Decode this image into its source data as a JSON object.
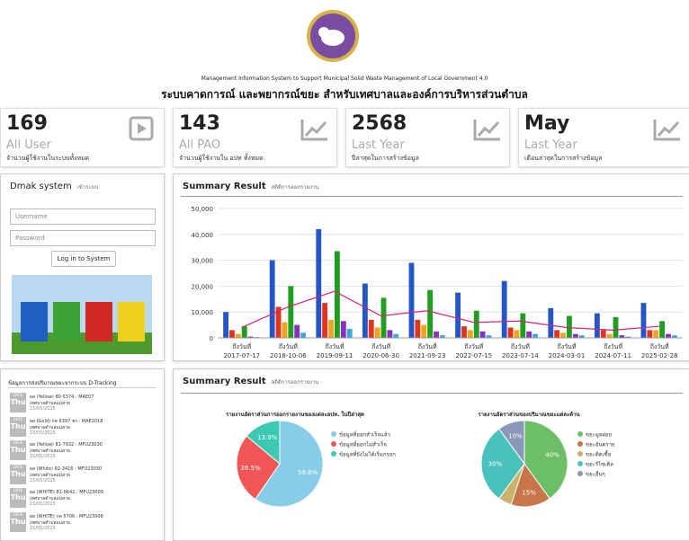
{
  "header": {
    "subtitle_en": "Management Information System to Support Municipal Solid Waste Management of Local Government 4.0",
    "title_th": "ระบบคาดการณ์ และพยากรณ์ขยะ สำหรับเทศบาลและองค์การบริหารส่วนตำบล"
  },
  "stats": [
    {
      "value": 169,
      "label": "All User",
      "desc": "จำนวนผู้ใช้งานในระบบทั้งหมด"
    },
    {
      "value": 143,
      "label": "All PAO",
      "desc": "จำนวนผู้ใช้งานใน อปท ทั้งหมด"
    },
    {
      "value": 2568,
      "label": "Last Year",
      "desc": "ปีล่าสุดในการสร้างข้อมูล"
    },
    {
      "value": "May",
      "label": "Last Year",
      "desc": "เดือนล่าสุดในการสร้างข้อมูล"
    }
  ],
  "login": {
    "title": "Dmak system",
    "subtitle": "เข้าระบบ",
    "username": "Username",
    "password": "Password",
    "button": "Log in to System"
  },
  "tracking": {
    "title": "ข้อมูลการส่งปริมาณขยะจากระบบ D-Tracking",
    "items": [
      {
        "badge": "DATE",
        "day": "Thu",
        "text": "ผส (Yellow) 80-5374 : MAE07",
        "org": "เทศบาลตำบลแม่สาย",
        "date": "15/05/2025"
      },
      {
        "badge": "DATE",
        "day": "Thu",
        "text": "ผส (Gold) กค 6397 ชร : MAE1018",
        "org": "เทศบาลตำบลแม่สาย",
        "date": "15/05/2025"
      },
      {
        "badge": "DATE",
        "day": "Thu",
        "text": "ผส (Yellow) 81-7932 : MFU23030",
        "org": "เทศบาลตำบลแม่สาย",
        "date": "15/05/2025"
      },
      {
        "badge": "DATE",
        "day": "Thu",
        "text": "ผส (White) 82-3416 : MFU23030",
        "org": "เทศบาลตำบลแม่สาย",
        "date": "15/05/2025"
      },
      {
        "badge": "DATE",
        "day": "Thu",
        "text": "ผส (WHITE) 81-0642 : MFU23009",
        "org": "เทศบาลตำบลแม่สาย",
        "date": "15/05/2025"
      },
      {
        "badge": "DATE",
        "day": "Thu",
        "text": "ผส (WHITE) กค 5706 : MFU23008",
        "org": "เทศบาลตำบลแม่สาย",
        "date": "15/05/2025"
      }
    ]
  },
  "panels": [
    {
      "title": "Summary Result",
      "subtitle": "สถิติการออกรายงาน"
    },
    {
      "title": "Summary Result",
      "subtitle": "สถิติการออกรายงาน"
    }
  ],
  "chart_data": [
    {
      "type": "bar",
      "category_prefix": "ถึงวันที่",
      "categories": [
        "2017-07-17",
        "2018-10-06",
        "2019-09-11",
        "2020-06-30",
        "2021-09-23",
        "2022-07-15",
        "2023-07-14",
        "2024-03-01",
        "2024-07-11",
        "2025-02-28"
      ],
      "ylim": [
        0,
        50000
      ],
      "yticks": [
        0,
        {
          "value": 10000,
          "label": "10,000"
        },
        {
          "value": 20000,
          "label": "20,000"
        },
        {
          "value": 30000,
          "label": "30,000"
        },
        {
          "value": 40000,
          "label": "40,000"
        },
        {
          "value": 50000,
          "label": "50,000"
        }
      ],
      "grid": true,
      "series": [
        {
          "color": "#2456c8",
          "values": [
            10000,
            30000,
            42000,
            21000,
            29000,
            17500,
            22000,
            11500,
            9500,
            13500
          ]
        },
        {
          "color": "#e0341e",
          "values": [
            3000,
            12000,
            13500,
            7000,
            7000,
            4500,
            4000,
            3000,
            3000,
            3000
          ]
        },
        {
          "color": "#f2a31b",
          "values": [
            1500,
            6000,
            7000,
            4000,
            5000,
            3000,
            3000,
            2000,
            1500,
            3000
          ]
        },
        {
          "color": "#1f9e1f",
          "values": [
            4500,
            20000,
            33500,
            15500,
            18500,
            10500,
            9500,
            8500,
            8000,
            6500
          ]
        },
        {
          "color": "#8a2fc4",
          "values": [
            500,
            5000,
            6500,
            3000,
            2500,
            2500,
            2500,
            1500,
            1000,
            1500
          ]
        },
        {
          "color": "#3ba7d6",
          "values": [
            300,
            2000,
            3500,
            1500,
            1000,
            1000,
            1500,
            1000,
            500,
            1000
          ]
        },
        {
          "type": "line",
          "color": "#d6247a",
          "values": [
            4000,
            12000,
            18000,
            8500,
            10500,
            6000,
            6500,
            4000,
            3000,
            4500
          ]
        }
      ]
    },
    {
      "type": "pie",
      "title": "รายงานอัตราส่วนการออกรายงานของแต่ละอปท. ในปีล่าสุด",
      "categories": [
        "ข้อมูลที่ออกสำเร็จแล้ว",
        "ข้อมูลที่ออกไม่สำเร็จ",
        "ข้อมูลที่ยังไม่ได้เริ่มกรอก"
      ],
      "values": [
        59.6,
        26.5,
        13.9
      ],
      "value_labels": [
        "59.6%",
        "26.5%",
        "13.9%"
      ],
      "colors": [
        "#87cdea",
        "#f05656",
        "#3cc9b4"
      ]
    },
    {
      "type": "pie",
      "title": "รายงานอัตราส่วนของปริมาณขยะแต่ละด้าน",
      "categories": [
        "ขยะมูลฝอย",
        "ขยะอันตราย",
        "ขยะติดเชื้อ",
        "ขยะรีไซเคิล",
        "ขยะอื่นๆ"
      ],
      "values": [
        40,
        15,
        5,
        30,
        10
      ],
      "value_labels": [
        "40%",
        "15%",
        null,
        "30%",
        "10%"
      ],
      "colors": [
        "#6dbf67",
        "#c8754a",
        "#c9b36a",
        "#49c2bb",
        "#8a97b8"
      ]
    }
  ]
}
